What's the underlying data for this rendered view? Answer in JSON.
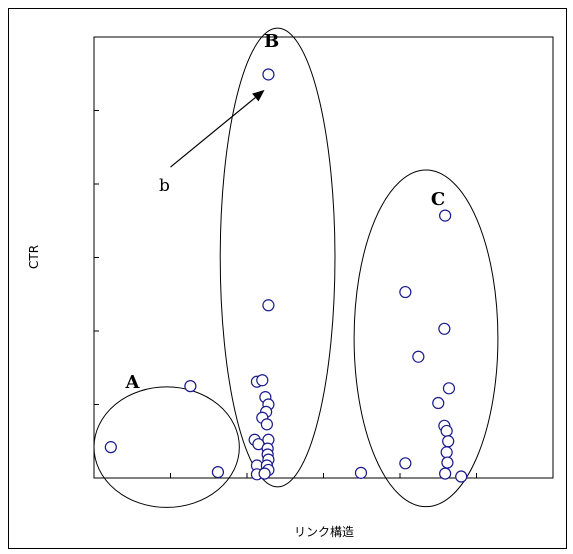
{
  "chart_data": {
    "type": "scatter",
    "title": "",
    "xlabel": "リンク構造",
    "ylabel": "CTR",
    "xlim": [
      0,
      6
    ],
    "ylim": [
      0,
      6
    ],
    "x_tick_count": 6,
    "y_tick_count": 6,
    "tick_labels_shown": false,
    "grid": false,
    "marker": {
      "shape": "open-circle",
      "color": "#1a1a8c"
    },
    "points": [
      {
        "x": 0.22,
        "y": 0.42
      },
      {
        "x": 1.26,
        "y": 1.25
      },
      {
        "x": 1.62,
        "y": 0.08
      },
      {
        "x": 2.13,
        "y": 1.31
      },
      {
        "x": 2.2,
        "y": 1.33
      },
      {
        "x": 2.24,
        "y": 1.1
      },
      {
        "x": 2.28,
        "y": 1.0
      },
      {
        "x": 2.25,
        "y": 0.9
      },
      {
        "x": 2.2,
        "y": 0.82
      },
      {
        "x": 2.26,
        "y": 0.73
      },
      {
        "x": 2.1,
        "y": 0.52
      },
      {
        "x": 2.15,
        "y": 0.46
      },
      {
        "x": 2.28,
        "y": 0.52
      },
      {
        "x": 2.27,
        "y": 0.4
      },
      {
        "x": 2.27,
        "y": 0.32
      },
      {
        "x": 2.28,
        "y": 0.25
      },
      {
        "x": 2.13,
        "y": 0.17
      },
      {
        "x": 2.26,
        "y": 0.17
      },
      {
        "x": 2.28,
        "y": 0.11
      },
      {
        "x": 2.13,
        "y": 0.05
      },
      {
        "x": 2.23,
        "y": 0.06
      },
      {
        "x": 2.28,
        "y": 2.35
      },
      {
        "x": 2.28,
        "y": 5.49
      },
      {
        "x": 3.49,
        "y": 0.07
      },
      {
        "x": 4.07,
        "y": 0.2
      },
      {
        "x": 4.07,
        "y": 2.53
      },
      {
        "x": 4.24,
        "y": 1.65
      },
      {
        "x": 4.5,
        "y": 1.02
      },
      {
        "x": 4.59,
        "y": 3.57
      },
      {
        "x": 4.58,
        "y": 2.03
      },
      {
        "x": 4.64,
        "y": 1.22
      },
      {
        "x": 4.58,
        "y": 0.71
      },
      {
        "x": 4.61,
        "y": 0.64
      },
      {
        "x": 4.63,
        "y": 0.5
      },
      {
        "x": 4.61,
        "y": 0.35
      },
      {
        "x": 4.62,
        "y": 0.21
      },
      {
        "x": 4.59,
        "y": 0.06
      },
      {
        "x": 4.8,
        "y": 0.02
      }
    ],
    "annotations": [
      {
        "type": "ellipse",
        "label": "A",
        "cx": 0.95,
        "cy": 0.42,
        "rx": 0.95,
        "ry": 0.82
      },
      {
        "type": "ellipse",
        "label": "B",
        "cx": 2.4,
        "cy": 3.0,
        "rx": 0.75,
        "ry": 3.12
      },
      {
        "type": "ellipse",
        "label": "C",
        "cx": 4.34,
        "cy": 1.9,
        "rx": 0.94,
        "ry": 2.29
      },
      {
        "type": "arrow",
        "label": "b",
        "from": [
          1.0,
          4.23
        ],
        "to": [
          2.23,
          5.28
        ]
      }
    ]
  }
}
